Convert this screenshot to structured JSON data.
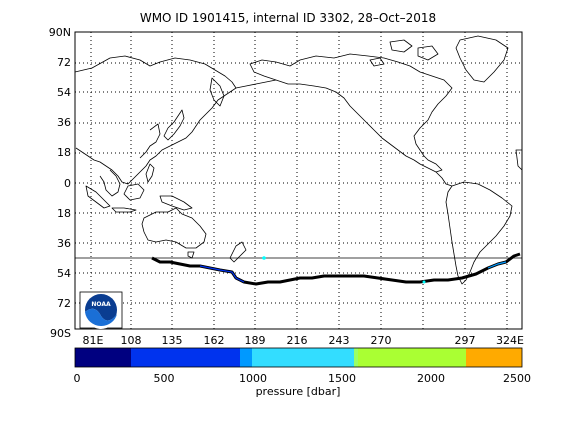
{
  "title": "WMO ID 1901415, internal ID 3302, 28–Oct–2018",
  "lat_labels": [
    "90N",
    "72",
    "54",
    "36",
    "18",
    "0",
    "18",
    "36",
    "54",
    "72",
    "90S"
  ],
  "lon_labels": [
    "81E",
    "108",
    "135",
    "162",
    "189",
    "216",
    "243",
    "270",
    "297",
    "324E"
  ],
  "colorbar": {
    "tick_labels": [
      "0",
      "500",
      "1000",
      "1500",
      "2000",
      "2500"
    ],
    "label": "pressure [dbar]",
    "colors": [
      "#000080",
      "#0033ee",
      "#0099ff",
      "#33ddff",
      "#99ff66",
      "#aaff33",
      "#ffaa00"
    ]
  },
  "logo": {
    "text": "NOAA",
    "icon": "noaa-logo-icon"
  },
  "track_color": "#000000",
  "float_profile_color": "#00ffff"
}
